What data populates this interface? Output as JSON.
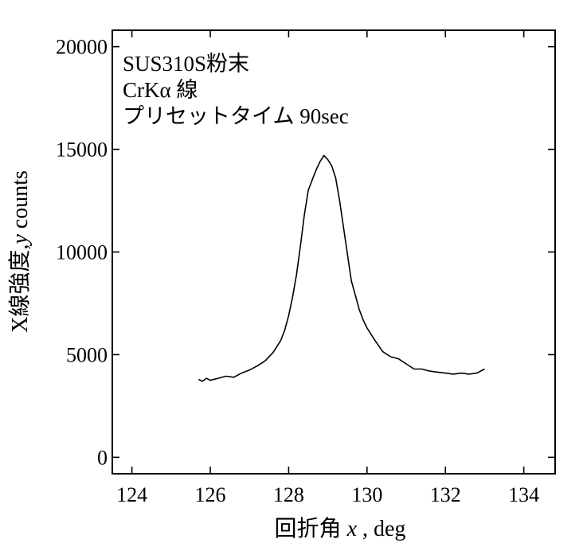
{
  "chart_data": {
    "type": "line",
    "xlabel": "回折角 x , deg",
    "xlabel_main": "回折角 ",
    "xlabel_var": "x",
    "xlabel_unit": " , deg",
    "ylabel": "X線強度, y counts",
    "ylabel_main": "X線強度,",
    "ylabel_var": "y",
    "ylabel_unit": " counts",
    "xlim": [
      123.5,
      134.8
    ],
    "ylim": [
      -800,
      20800
    ],
    "xticks": [
      124,
      126,
      128,
      130,
      132,
      134
    ],
    "xtick_labels": [
      "124",
      "126",
      "128",
      "130",
      "132",
      "134"
    ],
    "yticks": [
      0,
      5000,
      10000,
      15000,
      20000
    ],
    "ytick_labels": [
      "0",
      "5000",
      "10000",
      "15000",
      "20000"
    ],
    "grid": false,
    "annotations": [
      "SUS310S粉末",
      "CrKα 線",
      "プリセットタイム 90sec"
    ],
    "series": [
      {
        "x": [
          125.7,
          125.8,
          125.9,
          126.0,
          126.2,
          126.4,
          126.6,
          126.8,
          127.0,
          127.2,
          127.4,
          127.6,
          127.8,
          127.9,
          128.0,
          128.1,
          128.2,
          128.3,
          128.4,
          128.5,
          128.6,
          128.7,
          128.8,
          128.9,
          129.0,
          129.1,
          129.2,
          129.3,
          129.4,
          129.5,
          129.6,
          129.7,
          129.8,
          129.9,
          130.0,
          130.2,
          130.4,
          130.6,
          130.8,
          131.0,
          131.2,
          131.4,
          131.6,
          131.8,
          132.0,
          132.2,
          132.4,
          132.6,
          132.8,
          133.0
        ],
        "y": [
          3800,
          3700,
          3850,
          3750,
          3850,
          3950,
          3900,
          4100,
          4250,
          4450,
          4700,
          5100,
          5700,
          6200,
          6900,
          7800,
          8900,
          10300,
          11800,
          13000,
          13500,
          14000,
          14400,
          14700,
          14500,
          14200,
          13600,
          12500,
          11200,
          9900,
          8600,
          7900,
          7200,
          6700,
          6300,
          5700,
          5150,
          4900,
          4800,
          4550,
          4300,
          4300,
          4200,
          4150,
          4100,
          4050,
          4100,
          4050,
          4100,
          4300
        ]
      }
    ]
  }
}
